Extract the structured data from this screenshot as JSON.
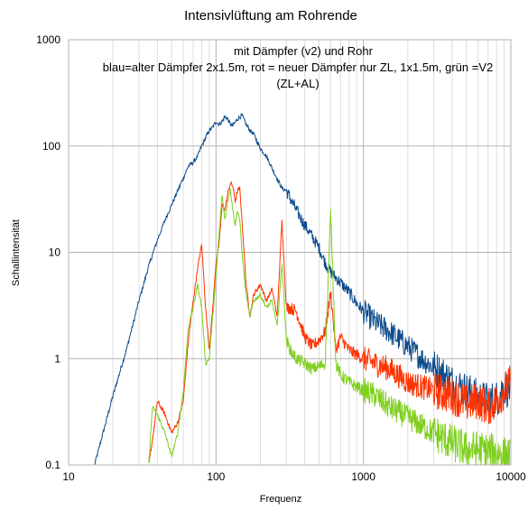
{
  "chart_data": {
    "type": "line",
    "title": "Intensivlüftung am Rohrende",
    "xlabel": "Frequenz",
    "ylabel": "Schallintensität",
    "x_scale": "log",
    "y_scale": "log",
    "xlim": [
      10,
      10000
    ],
    "ylim": [
      0.1,
      1000
    ],
    "x_ticks": [
      "10",
      "100",
      "1000",
      "10000"
    ],
    "y_ticks": [
      "1000",
      "100",
      "10",
      "1",
      "0.1"
    ],
    "grid": true,
    "annotation": [
      "mit Dämpfer (v2) und Rohr",
      "blau=alter Dämpfer 2x1.5m, rot = neuer Dämpfer nur ZL, 1x1.5m, grün =V2",
      "(ZL+AL)"
    ],
    "series": [
      {
        "color": "#0b4a8b",
        "x": [
          15,
          20,
          25,
          30,
          35,
          40,
          45,
          50,
          55,
          60,
          65,
          70,
          75,
          80,
          85,
          90,
          95,
          100,
          105,
          110,
          115,
          120,
          125,
          130,
          140,
          150,
          160,
          170,
          180,
          190,
          200,
          220,
          250,
          280,
          300,
          350,
          400,
          450,
          500,
          550,
          600,
          700,
          800,
          900,
          1000,
          1200,
          1500,
          2000,
          2500,
          3000,
          3500,
          4000,
          5000,
          6000,
          7000,
          8000,
          9000,
          10000
        ],
        "y": [
          0.1,
          0.45,
          1.3,
          3.5,
          7.5,
          13,
          20,
          28,
          38,
          50,
          65,
          70,
          80,
          100,
          120,
          140,
          150,
          170,
          160,
          170,
          190,
          180,
          160,
          155,
          180,
          195,
          160,
          140,
          130,
          110,
          95,
          80,
          55,
          40,
          38,
          25,
          18,
          14,
          11,
          8,
          6.5,
          5.2,
          4.2,
          3.3,
          2.8,
          2.2,
          1.8,
          1.3,
          1.0,
          0.82,
          0.7,
          0.6,
          0.5,
          0.43,
          0.4,
          0.42,
          0.55,
          0.5
        ]
      },
      {
        "color": "#ff3300",
        "x": [
          35,
          38,
          40,
          45,
          50,
          55,
          60,
          65,
          70,
          75,
          80,
          85,
          90,
          95,
          100,
          105,
          110,
          115,
          120,
          125,
          130,
          135,
          140,
          145,
          150,
          160,
          170,
          180,
          200,
          220,
          240,
          260,
          280,
          300,
          320,
          350,
          400,
          450,
          500,
          550,
          600,
          650,
          700,
          800,
          1000,
          1200,
          1500,
          2000,
          3000,
          4000,
          5000,
          6000,
          7000,
          8000,
          10000
        ],
        "y": [
          0.1,
          0.22,
          0.4,
          0.3,
          0.2,
          0.25,
          0.4,
          1.5,
          3.5,
          7,
          12,
          3,
          1.2,
          3,
          8,
          12,
          28,
          25,
          35,
          45,
          42,
          30,
          38,
          40,
          20,
          5,
          2.5,
          4,
          5,
          3.5,
          4.5,
          2.5,
          20,
          3,
          3,
          2.8,
          1.6,
          1.3,
          1.5,
          1.8,
          4.2,
          1.2,
          1.6,
          1.2,
          1.0,
          0.9,
          0.8,
          0.6,
          0.5,
          0.45,
          0.38,
          0.4,
          0.35,
          0.4,
          0.6
        ]
      },
      {
        "color": "#7fcf1f",
        "x": [
          35,
          37,
          40,
          45,
          50,
          55,
          60,
          65,
          70,
          75,
          80,
          85,
          90,
          95,
          100,
          105,
          110,
          115,
          120,
          125,
          130,
          135,
          140,
          145,
          150,
          160,
          170,
          180,
          200,
          220,
          240,
          260,
          280,
          300,
          320,
          350,
          400,
          450,
          500,
          550,
          600,
          650,
          700,
          800,
          1000,
          1200,
          1500,
          2000,
          3000,
          4000,
          5000,
          6000,
          8000,
          10000
        ],
        "y": [
          0.1,
          0.35,
          0.3,
          0.2,
          0.12,
          0.2,
          0.5,
          2,
          3,
          5,
          3,
          0.9,
          1.0,
          2.5,
          6,
          15,
          35,
          20,
          30,
          40,
          25,
          18,
          25,
          20,
          10,
          4,
          2.5,
          3.5,
          4,
          3,
          3.5,
          2,
          8,
          1.5,
          1.2,
          1.0,
          0.9,
          0.8,
          0.85,
          0.9,
          25,
          0.9,
          0.7,
          0.6,
          0.5,
          0.45,
          0.35,
          0.28,
          0.2,
          0.16,
          0.14,
          0.14,
          0.13,
          0.12
        ]
      }
    ]
  }
}
